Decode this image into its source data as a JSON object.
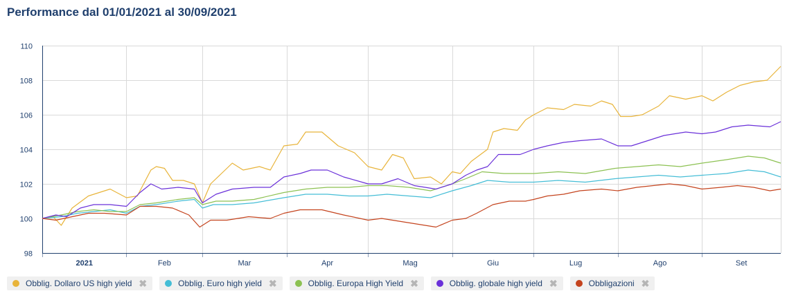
{
  "title": "Performance dal 01/01/2021 al 30/09/2021",
  "chart_data": {
    "type": "line",
    "ylim": [
      98,
      110
    ],
    "yticks": [
      98,
      100,
      102,
      104,
      106,
      108,
      110
    ],
    "xlim": [
      "2021-01-01",
      "2021-09-30"
    ],
    "xtick_labels": [
      {
        "date": "2021-01-01",
        "label": "2021",
        "bold": true
      },
      {
        "date": "2021-02-01",
        "label": "Feb"
      },
      {
        "date": "2021-03-01",
        "label": "Mar"
      },
      {
        "date": "2021-04-01",
        "label": "Apr"
      },
      {
        "date": "2021-05-01",
        "label": "Mag"
      },
      {
        "date": "2021-06-01",
        "label": "Giu"
      },
      {
        "date": "2021-07-01",
        "label": "Lug"
      },
      {
        "date": "2021-08-01",
        "label": "Ago"
      },
      {
        "date": "2021-09-01",
        "label": "Set"
      }
    ],
    "grid": true,
    "legend_placement": "bottom",
    "series": [
      {
        "name": "Obblig. Dollaro US high yield",
        "color": "#e8b43a",
        "points": [
          [
            "2021-01-01",
            100
          ],
          [
            "2021-01-05",
            100.1
          ],
          [
            "2021-01-08",
            99.6
          ],
          [
            "2021-01-12",
            100.6
          ],
          [
            "2021-01-18",
            101.3
          ],
          [
            "2021-01-22",
            101.5
          ],
          [
            "2021-01-26",
            101.7
          ],
          [
            "2021-02-01",
            101.2
          ],
          [
            "2021-02-05",
            101.3
          ],
          [
            "2021-02-10",
            102.8
          ],
          [
            "2021-02-12",
            103.0
          ],
          [
            "2021-02-15",
            102.9
          ],
          [
            "2021-02-18",
            102.2
          ],
          [
            "2021-02-22",
            102.2
          ],
          [
            "2021-02-26",
            102.0
          ],
          [
            "2021-03-01",
            100.9
          ],
          [
            "2021-03-04",
            102.0
          ],
          [
            "2021-03-08",
            102.6
          ],
          [
            "2021-03-12",
            103.2
          ],
          [
            "2021-03-16",
            102.8
          ],
          [
            "2021-03-22",
            103.0
          ],
          [
            "2021-03-26",
            102.8
          ],
          [
            "2021-03-31",
            104.2
          ],
          [
            "2021-04-05",
            104.3
          ],
          [
            "2021-04-08",
            105.0
          ],
          [
            "2021-04-14",
            105.0
          ],
          [
            "2021-04-20",
            104.2
          ],
          [
            "2021-04-26",
            103.8
          ],
          [
            "2021-05-01",
            103.0
          ],
          [
            "2021-05-06",
            102.8
          ],
          [
            "2021-05-10",
            103.7
          ],
          [
            "2021-05-14",
            103.5
          ],
          [
            "2021-05-18",
            102.3
          ],
          [
            "2021-05-24",
            102.4
          ],
          [
            "2021-05-28",
            102.0
          ],
          [
            "2021-06-01",
            102.7
          ],
          [
            "2021-06-04",
            102.6
          ],
          [
            "2021-06-08",
            103.3
          ],
          [
            "2021-06-14",
            104.0
          ],
          [
            "2021-06-16",
            105.0
          ],
          [
            "2021-06-20",
            105.2
          ],
          [
            "2021-06-25",
            105.1
          ],
          [
            "2021-06-28",
            105.7
          ],
          [
            "2021-07-01",
            106.0
          ],
          [
            "2021-07-06",
            106.4
          ],
          [
            "2021-07-12",
            106.3
          ],
          [
            "2021-07-16",
            106.6
          ],
          [
            "2021-07-22",
            106.5
          ],
          [
            "2021-07-26",
            106.8
          ],
          [
            "2021-07-30",
            106.6
          ],
          [
            "2021-08-02",
            105.9
          ],
          [
            "2021-08-06",
            105.9
          ],
          [
            "2021-08-10",
            106.0
          ],
          [
            "2021-08-16",
            106.5
          ],
          [
            "2021-08-20",
            107.1
          ],
          [
            "2021-08-26",
            106.9
          ],
          [
            "2021-09-01",
            107.1
          ],
          [
            "2021-09-05",
            106.8
          ],
          [
            "2021-09-10",
            107.3
          ],
          [
            "2021-09-15",
            107.7
          ],
          [
            "2021-09-20",
            107.9
          ],
          [
            "2021-09-25",
            108.0
          ],
          [
            "2021-09-30",
            108.8
          ]
        ]
      },
      {
        "name": "Obblig. Euro high yield",
        "color": "#44bdd6",
        "points": [
          [
            "2021-01-01",
            100
          ],
          [
            "2021-01-08",
            100.1
          ],
          [
            "2021-01-14",
            100.3
          ],
          [
            "2021-01-20",
            100.4
          ],
          [
            "2021-01-26",
            100.5
          ],
          [
            "2021-02-01",
            100.3
          ],
          [
            "2021-02-06",
            100.7
          ],
          [
            "2021-02-12",
            100.8
          ],
          [
            "2021-02-20",
            101.0
          ],
          [
            "2021-02-26",
            101.1
          ],
          [
            "2021-03-01",
            100.6
          ],
          [
            "2021-03-05",
            100.8
          ],
          [
            "2021-03-12",
            100.8
          ],
          [
            "2021-03-20",
            100.9
          ],
          [
            "2021-03-31",
            101.2
          ],
          [
            "2021-04-08",
            101.4
          ],
          [
            "2021-04-16",
            101.4
          ],
          [
            "2021-04-24",
            101.3
          ],
          [
            "2021-05-01",
            101.3
          ],
          [
            "2021-05-08",
            101.4
          ],
          [
            "2021-05-16",
            101.3
          ],
          [
            "2021-05-24",
            101.2
          ],
          [
            "2021-06-01",
            101.6
          ],
          [
            "2021-06-08",
            101.9
          ],
          [
            "2021-06-14",
            102.2
          ],
          [
            "2021-06-22",
            102.1
          ],
          [
            "2021-07-01",
            102.1
          ],
          [
            "2021-07-10",
            102.2
          ],
          [
            "2021-07-20",
            102.1
          ],
          [
            "2021-07-31",
            102.3
          ],
          [
            "2021-08-08",
            102.4
          ],
          [
            "2021-08-16",
            102.5
          ],
          [
            "2021-08-24",
            102.4
          ],
          [
            "2021-09-01",
            102.5
          ],
          [
            "2021-09-10",
            102.6
          ],
          [
            "2021-09-18",
            102.8
          ],
          [
            "2021-09-24",
            102.7
          ],
          [
            "2021-09-30",
            102.4
          ]
        ]
      },
      {
        "name": "Obblig. Europa High Yield",
        "color": "#8cc152",
        "points": [
          [
            "2021-01-01",
            100
          ],
          [
            "2021-01-08",
            100.2
          ],
          [
            "2021-01-14",
            100.4
          ],
          [
            "2021-01-20",
            100.5
          ],
          [
            "2021-01-26",
            100.4
          ],
          [
            "2021-02-01",
            100.4
          ],
          [
            "2021-02-06",
            100.8
          ],
          [
            "2021-02-12",
            100.9
          ],
          [
            "2021-02-20",
            101.1
          ],
          [
            "2021-02-26",
            101.2
          ],
          [
            "2021-03-01",
            100.8
          ],
          [
            "2021-03-06",
            101.0
          ],
          [
            "2021-03-12",
            101.0
          ],
          [
            "2021-03-20",
            101.1
          ],
          [
            "2021-03-31",
            101.5
          ],
          [
            "2021-04-08",
            101.7
          ],
          [
            "2021-04-16",
            101.8
          ],
          [
            "2021-04-24",
            101.8
          ],
          [
            "2021-05-01",
            101.9
          ],
          [
            "2021-05-08",
            101.9
          ],
          [
            "2021-05-16",
            101.8
          ],
          [
            "2021-05-24",
            101.6
          ],
          [
            "2021-06-01",
            102.0
          ],
          [
            "2021-06-06",
            102.3
          ],
          [
            "2021-06-12",
            102.7
          ],
          [
            "2021-06-20",
            102.6
          ],
          [
            "2021-07-01",
            102.6
          ],
          [
            "2021-07-10",
            102.7
          ],
          [
            "2021-07-20",
            102.6
          ],
          [
            "2021-07-31",
            102.9
          ],
          [
            "2021-08-08",
            103.0
          ],
          [
            "2021-08-16",
            103.1
          ],
          [
            "2021-08-24",
            103.0
          ],
          [
            "2021-09-01",
            103.2
          ],
          [
            "2021-09-10",
            103.4
          ],
          [
            "2021-09-18",
            103.6
          ],
          [
            "2021-09-24",
            103.5
          ],
          [
            "2021-09-30",
            103.2
          ]
        ]
      },
      {
        "name": "Obblig. globale high yield",
        "color": "#6a30d9",
        "points": [
          [
            "2021-01-01",
            100
          ],
          [
            "2021-01-06",
            100.2
          ],
          [
            "2021-01-10",
            100.1
          ],
          [
            "2021-01-15",
            100.6
          ],
          [
            "2021-01-20",
            100.8
          ],
          [
            "2021-01-26",
            100.8
          ],
          [
            "2021-02-01",
            100.7
          ],
          [
            "2021-02-06",
            101.5
          ],
          [
            "2021-02-10",
            102.0
          ],
          [
            "2021-02-14",
            101.7
          ],
          [
            "2021-02-20",
            101.8
          ],
          [
            "2021-02-26",
            101.7
          ],
          [
            "2021-03-01",
            100.9
          ],
          [
            "2021-03-06",
            101.4
          ],
          [
            "2021-03-12",
            101.7
          ],
          [
            "2021-03-20",
            101.8
          ],
          [
            "2021-03-26",
            101.8
          ],
          [
            "2021-03-31",
            102.4
          ],
          [
            "2021-04-06",
            102.6
          ],
          [
            "2021-04-10",
            102.8
          ],
          [
            "2021-04-16",
            102.8
          ],
          [
            "2021-04-22",
            102.4
          ],
          [
            "2021-05-01",
            102.0
          ],
          [
            "2021-05-06",
            102.0
          ],
          [
            "2021-05-12",
            102.3
          ],
          [
            "2021-05-18",
            101.9
          ],
          [
            "2021-05-26",
            101.7
          ],
          [
            "2021-06-01",
            102.0
          ],
          [
            "2021-06-06",
            102.5
          ],
          [
            "2021-06-10",
            102.8
          ],
          [
            "2021-06-14",
            103.0
          ],
          [
            "2021-06-18",
            103.7
          ],
          [
            "2021-06-26",
            103.7
          ],
          [
            "2021-07-01",
            104.0
          ],
          [
            "2021-07-06",
            104.2
          ],
          [
            "2021-07-12",
            104.4
          ],
          [
            "2021-07-18",
            104.5
          ],
          [
            "2021-07-26",
            104.6
          ],
          [
            "2021-08-01",
            104.2
          ],
          [
            "2021-08-06",
            104.2
          ],
          [
            "2021-08-12",
            104.5
          ],
          [
            "2021-08-18",
            104.8
          ],
          [
            "2021-08-26",
            105.0
          ],
          [
            "2021-09-01",
            104.9
          ],
          [
            "2021-09-06",
            105.0
          ],
          [
            "2021-09-12",
            105.3
          ],
          [
            "2021-09-18",
            105.4
          ],
          [
            "2021-09-26",
            105.3
          ],
          [
            "2021-09-30",
            105.6
          ]
        ]
      },
      {
        "name": "Obbligazioni",
        "color": "#c4431d",
        "points": [
          [
            "2021-01-01",
            100
          ],
          [
            "2021-01-06",
            99.9
          ],
          [
            "2021-01-12",
            100.1
          ],
          [
            "2021-01-18",
            100.3
          ],
          [
            "2021-01-24",
            100.3
          ],
          [
            "2021-02-01",
            100.2
          ],
          [
            "2021-02-06",
            100.7
          ],
          [
            "2021-02-12",
            100.7
          ],
          [
            "2021-02-18",
            100.6
          ],
          [
            "2021-02-24",
            100.2
          ],
          [
            "2021-02-28",
            99.5
          ],
          [
            "2021-03-04",
            99.9
          ],
          [
            "2021-03-10",
            99.9
          ],
          [
            "2021-03-18",
            100.1
          ],
          [
            "2021-03-26",
            100.0
          ],
          [
            "2021-03-31",
            100.3
          ],
          [
            "2021-04-06",
            100.5
          ],
          [
            "2021-04-14",
            100.5
          ],
          [
            "2021-04-22",
            100.2
          ],
          [
            "2021-05-01",
            99.9
          ],
          [
            "2021-05-06",
            100.0
          ],
          [
            "2021-05-14",
            99.8
          ],
          [
            "2021-05-22",
            99.6
          ],
          [
            "2021-05-26",
            99.5
          ],
          [
            "2021-06-01",
            99.9
          ],
          [
            "2021-06-06",
            100.0
          ],
          [
            "2021-06-10",
            100.3
          ],
          [
            "2021-06-16",
            100.8
          ],
          [
            "2021-06-22",
            101.0
          ],
          [
            "2021-06-28",
            101.0
          ],
          [
            "2021-07-01",
            101.1
          ],
          [
            "2021-07-06",
            101.3
          ],
          [
            "2021-07-12",
            101.4
          ],
          [
            "2021-07-18",
            101.6
          ],
          [
            "2021-07-26",
            101.7
          ],
          [
            "2021-08-01",
            101.6
          ],
          [
            "2021-08-08",
            101.8
          ],
          [
            "2021-08-14",
            101.9
          ],
          [
            "2021-08-20",
            102.0
          ],
          [
            "2021-08-26",
            101.9
          ],
          [
            "2021-09-01",
            101.7
          ],
          [
            "2021-09-08",
            101.8
          ],
          [
            "2021-09-14",
            101.9
          ],
          [
            "2021-09-20",
            101.8
          ],
          [
            "2021-09-26",
            101.6
          ],
          [
            "2021-09-30",
            101.7
          ]
        ]
      }
    ]
  },
  "legend_close_glyph": "✖"
}
